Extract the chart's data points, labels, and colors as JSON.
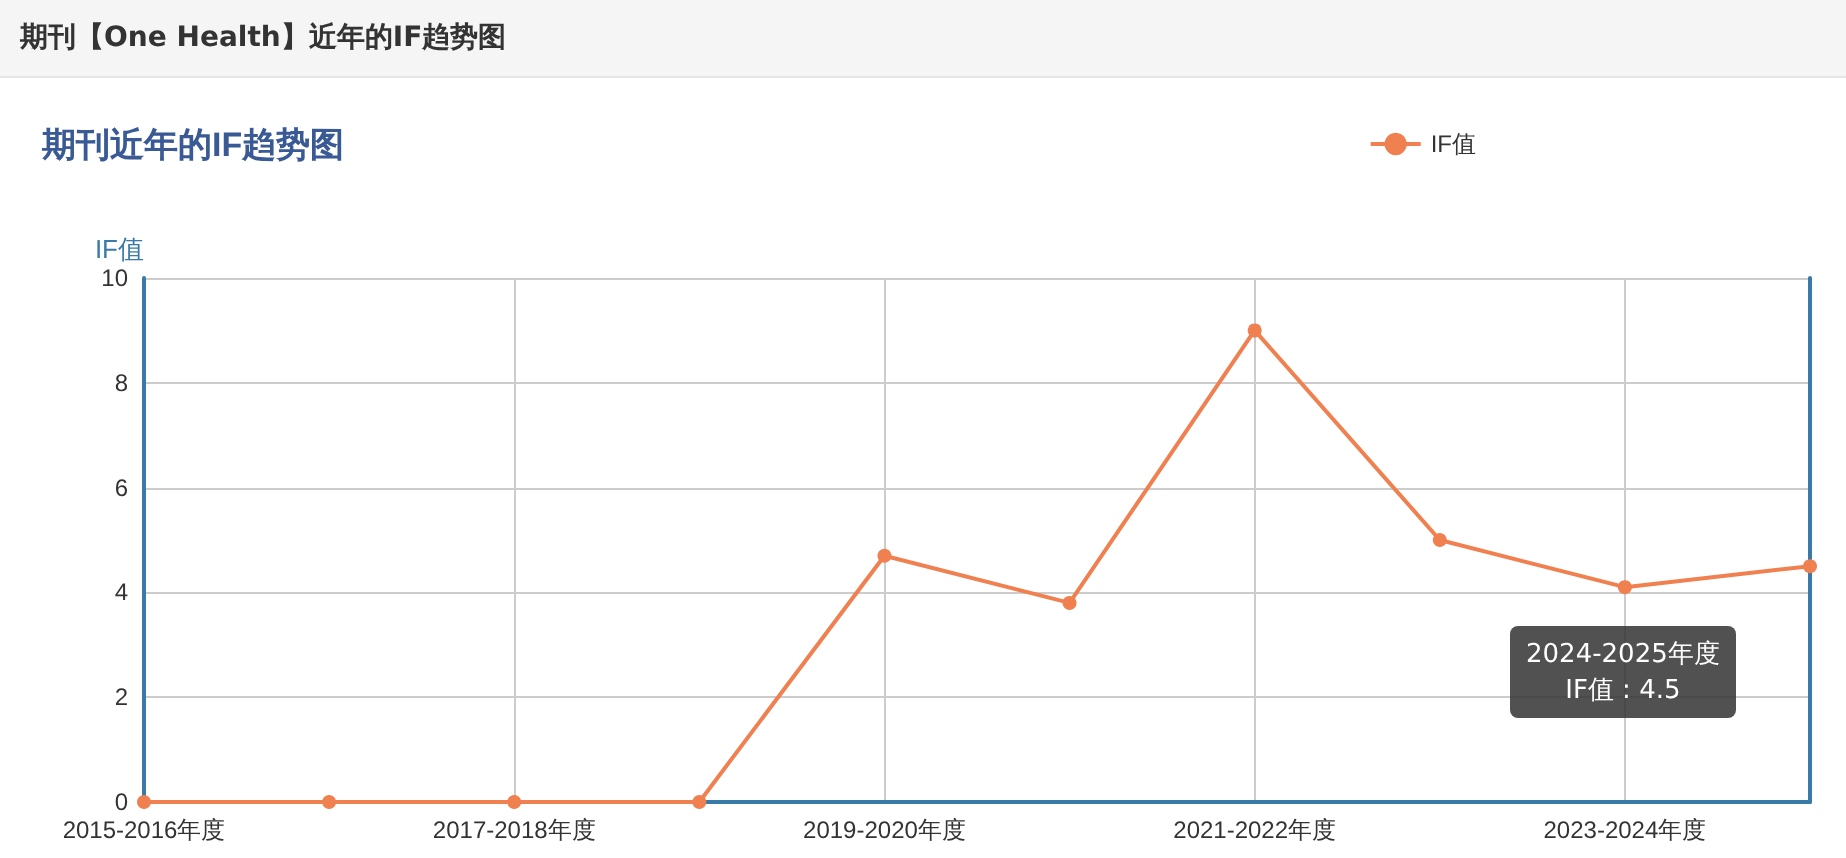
{
  "chart_data": {
    "type": "line",
    "title": "期刊近年的IF趋势图",
    "ylabel": "IF值",
    "annotations": [
      "期刊【One Health】近年的IF趋势图",
      "2024-2025年度\nIF值 : 4.5"
    ],
    "categories": [
      "2015-2016年度",
      null,
      "2017-2018年度",
      null,
      "2019-2020年度",
      null,
      "2021-2022年度",
      null,
      "2023-2024年度",
      null
    ],
    "series": [
      {
        "name": "IF值",
        "color": "#f08050",
        "values": [
          0,
          0,
          0,
          0,
          4.7,
          3.8,
          9.0,
          5.0,
          4.1,
          4.5
        ]
      }
    ],
    "ylim": [
      0,
      10
    ],
    "yticks": [
      0,
      2,
      4,
      6,
      8,
      10
    ],
    "grid": true,
    "legend": "top right",
    "marker": "circle",
    "line_style": "solid"
  }
}
